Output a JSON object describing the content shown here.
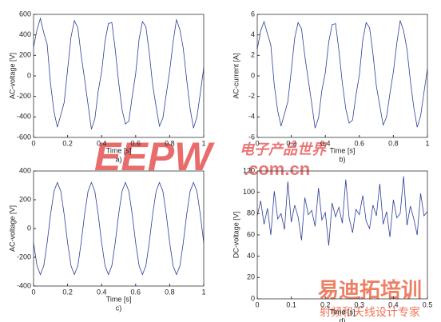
{
  "chart_data": [
    {
      "type": "line",
      "label": "a)",
      "xlabel": "Time [s]",
      "ylabel": "AC-voltage [V]",
      "color": "#2b3f96",
      "xlim": [
        0,
        1
      ],
      "xticks": [
        0,
        0.2,
        0.4,
        0.6,
        0.8,
        1
      ],
      "ylim": [
        -600,
        600
      ],
      "yticks": [
        -600,
        -400,
        -200,
        0,
        200,
        400,
        600
      ],
      "x": [
        0,
        0.02,
        0.04,
        0.06,
        0.08,
        0.1,
        0.12,
        0.14,
        0.16,
        0.18,
        0.2,
        0.22,
        0.24,
        0.26,
        0.28,
        0.3,
        0.32,
        0.34,
        0.36,
        0.38,
        0.4,
        0.42,
        0.44,
        0.46,
        0.48,
        0.5,
        0.52,
        0.54,
        0.56,
        0.58,
        0.6,
        0.62,
        0.64,
        0.66,
        0.68,
        0.7,
        0.72,
        0.74,
        0.76,
        0.78,
        0.8,
        0.82,
        0.84,
        0.86,
        0.88,
        0.9,
        0.92,
        0.94,
        0.96,
        0.98,
        1
      ],
      "values": [
        280,
        450,
        560,
        420,
        310,
        -80,
        -350,
        -500,
        -380,
        -260,
        60,
        380,
        540,
        470,
        200,
        -30,
        -280,
        -520,
        -420,
        -150,
        40,
        340,
        510,
        520,
        260,
        -60,
        -330,
        -470,
        -440,
        -200,
        20,
        360,
        530,
        480,
        230,
        -90,
        -300,
        -490,
        -410,
        -180,
        50,
        330,
        550,
        450,
        270,
        -40,
        -320,
        -510,
        -400,
        -170,
        80
      ]
    },
    {
      "type": "line",
      "label": "b)",
      "xlabel": "Time [s]",
      "ylabel": "AC-current [A]",
      "color": "#2b3f96",
      "xlim": [
        0,
        1
      ],
      "xticks": [
        0,
        0.2,
        0.4,
        0.6,
        0.8,
        1
      ],
      "ylim": [
        -6,
        6
      ],
      "yticks": [
        -6,
        -4,
        -2,
        0,
        2,
        4,
        6
      ],
      "x": [
        0,
        0.02,
        0.04,
        0.06,
        0.08,
        0.1,
        0.12,
        0.14,
        0.16,
        0.18,
        0.2,
        0.22,
        0.24,
        0.26,
        0.28,
        0.3,
        0.32,
        0.34,
        0.36,
        0.38,
        0.4,
        0.42,
        0.44,
        0.46,
        0.48,
        0.5,
        0.52,
        0.54,
        0.56,
        0.58,
        0.6,
        0.62,
        0.64,
        0.66,
        0.68,
        0.7,
        0.72,
        0.74,
        0.76,
        0.78,
        0.8,
        0.82,
        0.84,
        0.86,
        0.88,
        0.9,
        0.92,
        0.94,
        0.96,
        0.98,
        1
      ],
      "values": [
        2.6,
        4.4,
        5.3,
        4.1,
        3.0,
        -0.9,
        -3.4,
        -4.9,
        -3.7,
        -2.5,
        0.5,
        3.7,
        5.2,
        4.6,
        1.9,
        -0.4,
        -2.7,
        -5.1,
        -4.1,
        -1.4,
        0.3,
        3.3,
        5.0,
        5.1,
        2.5,
        -0.7,
        -3.2,
        -4.6,
        -4.3,
        -1.9,
        0.1,
        3.5,
        5.2,
        4.7,
        2.2,
        -1.0,
        -2.9,
        -4.8,
        -4.0,
        -1.7,
        0.4,
        3.2,
        5.4,
        4.4,
        2.6,
        -0.5,
        -3.1,
        -5.0,
        -3.9,
        -1.6,
        0.7
      ]
    },
    {
      "type": "line",
      "label": "c)",
      "xlabel": "Time [s]",
      "ylabel": "AC-voltage [V]",
      "color": "#2b3f96",
      "xlim": [
        0,
        1
      ],
      "xticks": [
        0,
        0.2,
        0.4,
        0.6,
        0.8,
        1
      ],
      "ylim": [
        -400,
        400
      ],
      "yticks": [
        -400,
        -200,
        0,
        200,
        400
      ],
      "x": [
        0,
        0.02,
        0.04,
        0.06,
        0.08,
        0.1,
        0.12,
        0.14,
        0.16,
        0.18,
        0.2,
        0.22,
        0.24,
        0.26,
        0.28,
        0.3,
        0.32,
        0.34,
        0.36,
        0.38,
        0.4,
        0.42,
        0.44,
        0.46,
        0.48,
        0.5,
        0.52,
        0.54,
        0.56,
        0.58,
        0.6,
        0.62,
        0.64,
        0.66,
        0.68,
        0.7,
        0.72,
        0.74,
        0.76,
        0.78,
        0.8,
        0.82,
        0.84,
        0.86,
        0.88,
        0.9,
        0.92,
        0.94,
        0.96,
        0.98,
        1
      ],
      "values": [
        -99,
        -259,
        -320,
        -259,
        -99,
        99,
        259,
        320,
        259,
        99,
        -99,
        -259,
        -320,
        -259,
        -99,
        99,
        259,
        320,
        259,
        99,
        -99,
        -259,
        -320,
        -259,
        -99,
        99,
        259,
        320,
        259,
        99,
        -99,
        -259,
        -320,
        -259,
        -99,
        99,
        259,
        320,
        259,
        99,
        -99,
        -259,
        -320,
        -259,
        -99,
        99,
        259,
        320,
        259,
        99,
        -99
      ]
    },
    {
      "type": "line",
      "label": "d)",
      "xlabel": "Time [s]",
      "ylabel": "DC-voltage [V]",
      "color": "#2b3f96",
      "xlim": [
        0,
        0.5
      ],
      "xticks": [
        0,
        0.1,
        0.2,
        0.3,
        0.4,
        0.5
      ],
      "ylim": [
        0,
        120
      ],
      "yticks": [
        0,
        20,
        40,
        60,
        80,
        100,
        120
      ],
      "x": [
        0,
        0.01,
        0.02,
        0.03,
        0.04,
        0.05,
        0.06,
        0.07,
        0.08,
        0.09,
        0.1,
        0.11,
        0.12,
        0.13,
        0.14,
        0.15,
        0.16,
        0.17,
        0.18,
        0.19,
        0.2,
        0.21,
        0.22,
        0.23,
        0.24,
        0.25,
        0.26,
        0.27,
        0.28,
        0.29,
        0.3,
        0.31,
        0.32,
        0.33,
        0.34,
        0.35,
        0.36,
        0.37,
        0.38,
        0.39,
        0.4,
        0.41,
        0.42,
        0.43,
        0.44,
        0.45,
        0.46,
        0.47,
        0.48,
        0.49,
        0.5
      ],
      "values": [
        78,
        92,
        70,
        85,
        60,
        101,
        75,
        80,
        65,
        110,
        72,
        88,
        77,
        55,
        95,
        79,
        83,
        68,
        104,
        74,
        81,
        50,
        90,
        77,
        86,
        71,
        112,
        76,
        62,
        84,
        79,
        97,
        73,
        66,
        88,
        78,
        108,
        70,
        82,
        58,
        93,
        76,
        80,
        115,
        69,
        87,
        75,
        60,
        99,
        78,
        82
      ]
    }
  ],
  "watermark": {
    "logo": "EEPW",
    "cn": "电子产品世界",
    "domain": ".com.cn",
    "brand": "易迪拓培训",
    "slogan": "射频和天线设计专家"
  }
}
